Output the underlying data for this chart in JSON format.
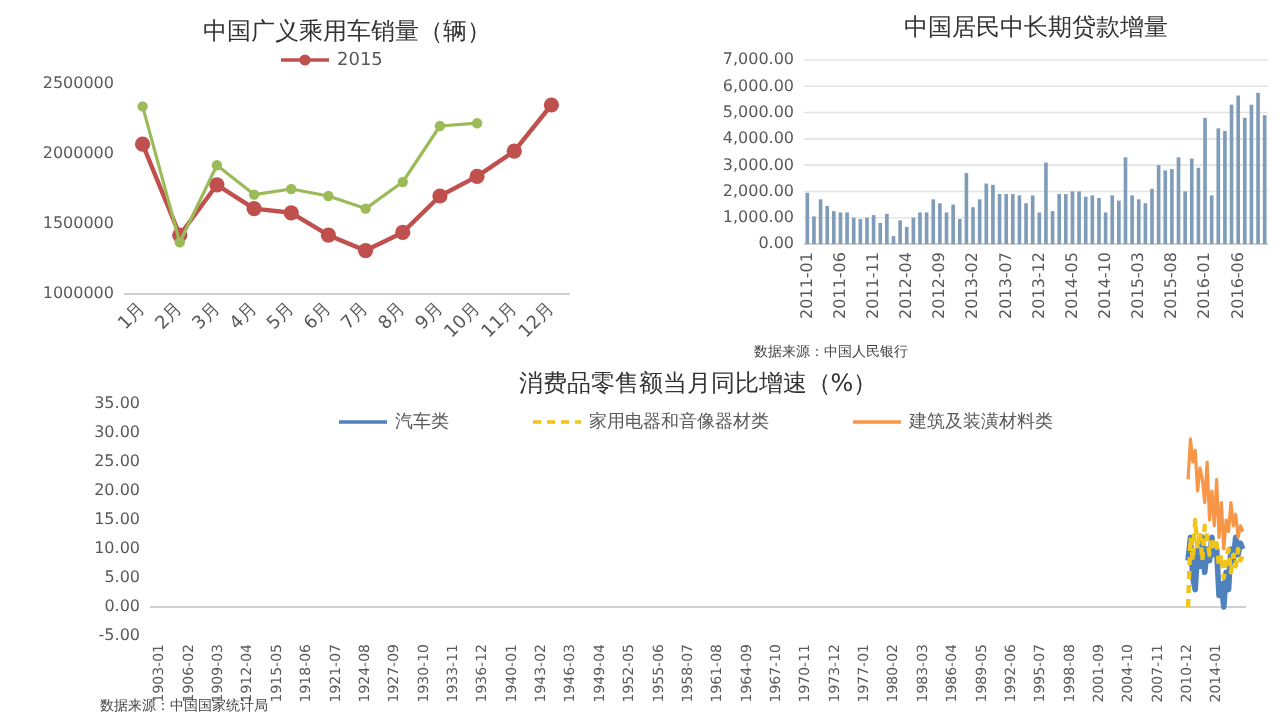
{
  "chart_data": [
    {
      "type": "line",
      "title": "中国广义乘用车销量（辆）",
      "categories": [
        "1月",
        "2月",
        "3月",
        "4月",
        "5月",
        "6月",
        "7月",
        "8月",
        "9月",
        "10月",
        "11月",
        "12月"
      ],
      "series": [
        {
          "name": "2015",
          "color": "#c0504d",
          "values": [
            2070000,
            1420000,
            1780000,
            1610000,
            1580000,
            1420000,
            1310000,
            1440000,
            1700000,
            1840000,
            2020000,
            2350000
          ]
        },
        {
          "color": "#9bbb59",
          "values": [
            2340000,
            1370000,
            1920000,
            1710000,
            1750000,
            1700000,
            1610000,
            1800000,
            2200000,
            2220000,
            null,
            null
          ]
        }
      ],
      "marker": "circle",
      "ylim": [
        1000000,
        2500000
      ],
      "yticks": [
        1000000,
        1500000,
        2000000,
        2500000
      ],
      "legend": "top"
    },
    {
      "type": "bar",
      "title": "中国居民中长期贷款增量",
      "categories": [
        "2011-01",
        null,
        null,
        null,
        null,
        "2011-06",
        null,
        null,
        null,
        null,
        "2011-11",
        null,
        null,
        null,
        null,
        "2012-04",
        null,
        null,
        null,
        null,
        "2012-09",
        null,
        null,
        null,
        null,
        "2013-02",
        null,
        null,
        null,
        null,
        "2013-07",
        null,
        null,
        null,
        null,
        "2013-12",
        null,
        null,
        null,
        null,
        "2014-05",
        null,
        null,
        null,
        null,
        "2014-10",
        null,
        null,
        null,
        null,
        "2015-03",
        null,
        null,
        null,
        null,
        "2015-08",
        null,
        null,
        null,
        null,
        "2016-01",
        null,
        null,
        null,
        null,
        "2016-06",
        null,
        null,
        null,
        null
      ],
      "series": [
        {
          "color": "#7f9db9",
          "values": [
            1950,
            1050,
            1700,
            1450,
            1250,
            1200,
            1200,
            1000,
            950,
            1000,
            1100,
            800,
            1150,
            300,
            900,
            650,
            1000,
            1200,
            1200,
            1700,
            1550,
            1200,
            1500,
            950,
            2700,
            1400,
            1700,
            2300,
            2250,
            1900,
            1900,
            1900,
            1850,
            1550,
            1850,
            1200,
            3100,
            1250,
            1900,
            1900,
            2000,
            2000,
            1800,
            1850,
            1750,
            1200,
            1850,
            1650,
            3300,
            1850,
            1700,
            1550,
            2100,
            3000,
            2800,
            2850,
            3300,
            2000,
            3250,
            2900,
            4800,
            1850,
            4400,
            4300,
            5300,
            5650,
            4800,
            5300,
            5750,
            4900
          ]
        }
      ],
      "ylim": [
        0,
        7000
      ],
      "yticks": [
        {
          "value": 0,
          "label": "0.00"
        },
        {
          "value": 1000,
          "label": "1,000.00"
        },
        {
          "value": 2000,
          "label": "2,000.00"
        },
        {
          "value": 3000,
          "label": "3,000.00"
        },
        {
          "value": 4000,
          "label": "4,000.00"
        },
        {
          "value": 5000,
          "label": "5,000.00"
        },
        {
          "value": 6000,
          "label": "6,000.00"
        },
        {
          "value": 7000,
          "label": "7,000.00"
        }
      ],
      "grid": "y",
      "annotations": [
        "数据来源：中国人民银行"
      ]
    },
    {
      "type": "line",
      "title": "消费品零售额当月同比增速（%）",
      "x": [
        "2011-01",
        "2011-04",
        "2011-07",
        "2011-10",
        "2012-01",
        "2012-04",
        "2012-07",
        "2012-10",
        "2013-01",
        "2013-04",
        "2013-07",
        "2013-10",
        "2014-01",
        "2014-04",
        "2014-07",
        "2014-10",
        "2015-01",
        "2015-04",
        "2015-07",
        "2015-10",
        "2016-01",
        "2016-04",
        "2016-07",
        "2016-10"
      ],
      "series": [
        {
          "name": "汽车类",
          "color": "#4f81bd",
          "values": [
            8,
            12,
            5,
            3,
            10,
            7,
            12,
            6,
            10,
            8,
            12,
            9,
            10,
            2,
            4,
            0,
            6,
            3,
            10,
            8,
            12,
            9,
            11,
            10
          ]
        },
        {
          "name": "家用电器和音像器材类",
          "color": "#f0c419",
          "line_style": "dashed",
          "values": [
            0,
            12,
            8,
            15,
            10,
            13,
            8,
            14,
            12,
            9,
            12,
            10,
            11,
            7,
            9,
            5,
            8,
            10,
            6,
            9,
            7,
            10,
            8,
            9
          ]
        },
        {
          "name": "建筑及装潢材料类",
          "color": "#f79646",
          "values": [
            22,
            29,
            25,
            27,
            20,
            24,
            22,
            18,
            25,
            15,
            20,
            14,
            22,
            12,
            18,
            10,
            15,
            13,
            18,
            14,
            16,
            12,
            14,
            13
          ]
        }
      ],
      "xlim": [
        "1902-01",
        "2017-02"
      ],
      "xticks": [
        "1903-01",
        "1906-02",
        "1909-03",
        "1912-04",
        "1915-05",
        "1918-06",
        "1921-07",
        "1924-08",
        "1927-09",
        "1930-10",
        "1933-11",
        "1936-12",
        "1940-01",
        "1943-02",
        "1946-03",
        "1949-04",
        "1952-05",
        "1955-06",
        "1958-07",
        "1961-08",
        "1964-09",
        "1967-10",
        "1970-11",
        "1973-12",
        "1977-01",
        "1980-02",
        "1983-03",
        "1986-04",
        "1989-05",
        "1992-06",
        "1995-07",
        "1998-08",
        "2001-09",
        "2004-10",
        "2007-11",
        "2010-12",
        "2014-01"
      ],
      "ylim": [
        -5,
        35
      ],
      "yticks": [
        {
          "value": -5,
          "label": "-5.00"
        },
        {
          "value": 0,
          "label": "0.00"
        },
        {
          "value": 5,
          "label": "5.00"
        },
        {
          "value": 10,
          "label": "10.00"
        },
        {
          "value": 15,
          "label": "15.00"
        },
        {
          "value": 20,
          "label": "20.00"
        },
        {
          "value": 25,
          "label": "25.00"
        },
        {
          "value": 30,
          "label": "30.00"
        },
        {
          "value": 35,
          "label": "35.00"
        }
      ],
      "legend": "top",
      "annotations": [
        "数据来源：中国国家统计局"
      ]
    }
  ]
}
